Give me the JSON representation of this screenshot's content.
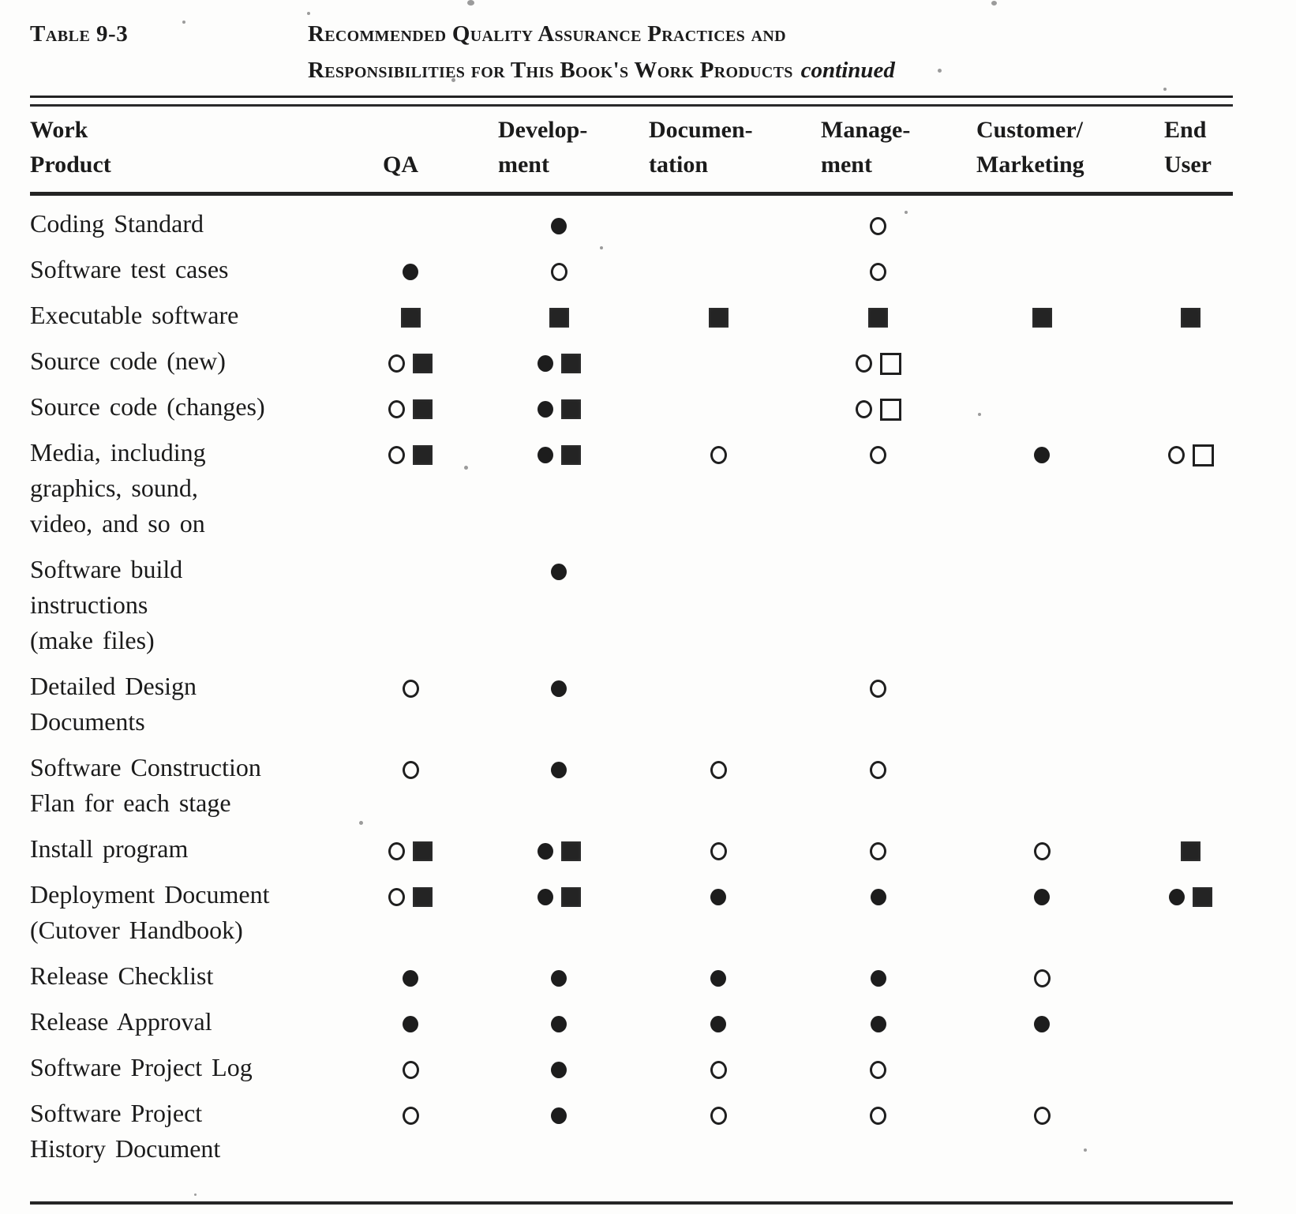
{
  "page": {
    "table_number": "Table 9-3",
    "title_line1": "Recommended Quality Assurance Practices and",
    "title_line2": "Responsibilities for This Book's Work Products",
    "title_continued": "continued"
  },
  "colors": {
    "ink": "#1d1d1d",
    "paper": "#fdfdfc"
  },
  "symbol_types": [
    "filled-circle",
    "open-circle",
    "filled-square",
    "open-square"
  ],
  "columns": [
    {
      "id": "work-product",
      "label": "Work\nProduct"
    },
    {
      "id": "qa",
      "label": "QA"
    },
    {
      "id": "development",
      "label": "Develop-\nment"
    },
    {
      "id": "documentation",
      "label": "Documen-\ntation"
    },
    {
      "id": "management",
      "label": "Manage-\nment"
    },
    {
      "id": "customer-marketing",
      "label": "Customer/\nMarketing"
    },
    {
      "id": "end-user",
      "label": "End\nUser"
    }
  ],
  "rows": [
    {
      "label": "Coding Standard",
      "cells": [
        [],
        [
          "filled-circle"
        ],
        [],
        [
          "open-circle"
        ],
        [],
        []
      ]
    },
    {
      "label": "Software test cases",
      "cells": [
        [
          "filled-circle"
        ],
        [
          "open-circle"
        ],
        [],
        [
          "open-circle"
        ],
        [],
        []
      ]
    },
    {
      "label": "Executable software",
      "cells": [
        [
          "filled-square"
        ],
        [
          "filled-square"
        ],
        [
          "filled-square"
        ],
        [
          "filled-square"
        ],
        [
          "filled-square"
        ],
        [
          "filled-square"
        ]
      ]
    },
    {
      "label": "Source code (new)",
      "cells": [
        [
          "open-circle",
          "filled-square"
        ],
        [
          "filled-circle",
          "filled-square"
        ],
        [],
        [
          "open-circle",
          "open-square"
        ],
        [],
        []
      ]
    },
    {
      "label": "Source code (changes)",
      "cells": [
        [
          "open-circle",
          "filled-square"
        ],
        [
          "filled-circle",
          "filled-square"
        ],
        [],
        [
          "open-circle",
          "open-square"
        ],
        [],
        []
      ]
    },
    {
      "label": "Media, including\ngraphics, sound,\nvideo, and so on",
      "cells": [
        [
          "open-circle",
          "filled-square"
        ],
        [
          "filled-circle",
          "filled-square"
        ],
        [
          "open-circle"
        ],
        [
          "open-circle"
        ],
        [
          "filled-circle"
        ],
        [
          "open-circle",
          "open-square"
        ]
      ]
    },
    {
      "label": "Software build\ninstructions\n(make files)",
      "cells": [
        [],
        [
          "filled-circle"
        ],
        [],
        [],
        [],
        []
      ]
    },
    {
      "label": "Detailed Design\nDocuments",
      "cells": [
        [
          "open-circle"
        ],
        [
          "filled-circle"
        ],
        [],
        [
          "open-circle"
        ],
        [],
        []
      ]
    },
    {
      "label": "Software Construction\nFlan for each stage",
      "cells": [
        [
          "open-circle"
        ],
        [
          "filled-circle"
        ],
        [
          "open-circle"
        ],
        [
          "open-circle"
        ],
        [],
        []
      ]
    },
    {
      "label": "Install program",
      "cells": [
        [
          "open-circle",
          "filled-square"
        ],
        [
          "filled-circle",
          "filled-square"
        ],
        [
          "open-circle"
        ],
        [
          "open-circle"
        ],
        [
          "open-circle"
        ],
        [
          "filled-square"
        ]
      ]
    },
    {
      "label": "Deployment Document\n(Cutover Handbook)",
      "cells": [
        [
          "open-circle",
          "filled-square"
        ],
        [
          "filled-circle",
          "filled-square"
        ],
        [
          "filled-circle"
        ],
        [
          "filled-circle"
        ],
        [
          "filled-circle"
        ],
        [
          "filled-circle",
          "filled-square"
        ]
      ]
    },
    {
      "label": "Release Checklist",
      "cells": [
        [
          "filled-circle"
        ],
        [
          "filled-circle"
        ],
        [
          "filled-circle"
        ],
        [
          "filled-circle"
        ],
        [
          "open-circle"
        ],
        []
      ]
    },
    {
      "label": "Release Approval",
      "cells": [
        [
          "filled-circle"
        ],
        [
          "filled-circle"
        ],
        [
          "filled-circle"
        ],
        [
          "filled-circle"
        ],
        [
          "filled-circle"
        ],
        []
      ]
    },
    {
      "label": "Software Project Log",
      "cells": [
        [
          "open-circle"
        ],
        [
          "filled-circle"
        ],
        [
          "open-circle"
        ],
        [
          "open-circle"
        ],
        [],
        []
      ]
    },
    {
      "label": "Software Project\nHistory Document",
      "cells": [
        [
          "open-circle"
        ],
        [
          "filled-circle"
        ],
        [
          "open-circle"
        ],
        [
          "open-circle"
        ],
        [
          "open-circle"
        ],
        []
      ]
    }
  ]
}
